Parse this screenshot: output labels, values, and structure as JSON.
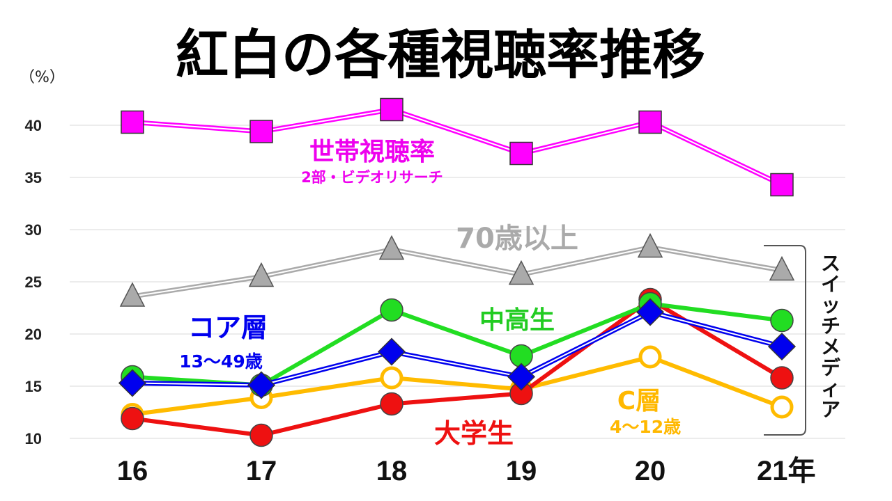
{
  "chart_data": {
    "type": "line",
    "title": "紅白の各種視聴率推移",
    "ylabel": "（%）",
    "categories": [
      "16",
      "17",
      "18",
      "19",
      "20",
      "21年"
    ],
    "ylim": [
      10,
      40
    ],
    "yticks": [
      10,
      15,
      20,
      25,
      30,
      35,
      40
    ],
    "grid": true,
    "bracket_label": "スイッチメディア",
    "series": [
      {
        "name": "世帯視聴率",
        "sublabel": "2部・ビデオリサーチ",
        "color": "#ff00ff",
        "marker": "square",
        "values": [
          40.3,
          39.4,
          41.5,
          37.3,
          40.3,
          34.3
        ]
      },
      {
        "name": "70歳以上",
        "sublabel": "",
        "color": "#aaaaaa",
        "marker": "triangle",
        "values": [
          23.6,
          25.5,
          28.1,
          25.7,
          28.3,
          26.1
        ]
      },
      {
        "name": "中高生",
        "sublabel": "",
        "color": "#22dd22",
        "marker": "circle",
        "values": [
          15.9,
          15.1,
          22.3,
          17.9,
          22.9,
          21.3
        ]
      },
      {
        "name": "コア層",
        "sublabel": "13〜49歳",
        "color": "#0000ee",
        "marker": "diamond",
        "values": [
          15.3,
          15.1,
          18.3,
          15.9,
          22.1,
          18.8
        ]
      },
      {
        "name": "C層",
        "sublabel": "4〜12歳",
        "color": "#ffbb00",
        "marker": "open-circle",
        "values": [
          12.3,
          13.9,
          15.8,
          14.7,
          17.8,
          13.0
        ]
      },
      {
        "name": "大学生",
        "sublabel": "",
        "color": "#ee1111",
        "marker": "circle",
        "values": [
          11.9,
          10.3,
          13.3,
          14.3,
          23.3,
          15.8
        ]
      }
    ]
  }
}
